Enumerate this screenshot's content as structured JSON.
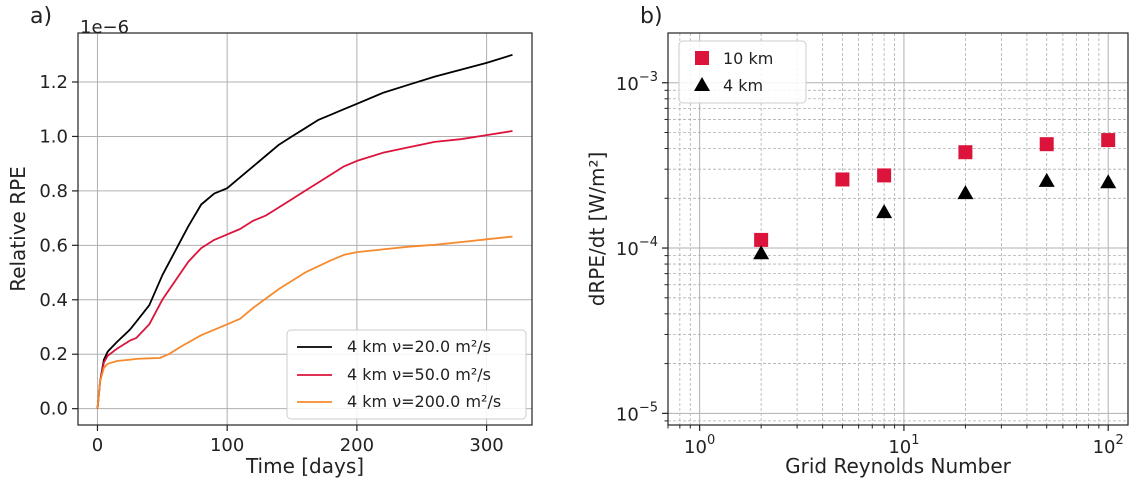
{
  "chart_data": [
    {
      "type": "line",
      "panel_label": "a)",
      "offset_label": "1e−6",
      "xlabel": "Time [days]",
      "ylabel": "Relative RPE",
      "xlim": [
        -15,
        335
      ],
      "ylim": [
        -0.06,
        1.38
      ],
      "y_scale_factor": 1e-06,
      "xticks": [
        0,
        100,
        200,
        300
      ],
      "xtick_labels": [
        "0",
        "100",
        "200",
        "300"
      ],
      "yticks": [
        0.0,
        0.2,
        0.4,
        0.6,
        0.8,
        1.0,
        1.2
      ],
      "ytick_labels": [
        "0.0",
        "0.2",
        "0.4",
        "0.6",
        "0.8",
        "1.0",
        "1.2"
      ],
      "grid": true,
      "legend_position": "lower-right",
      "series": [
        {
          "name": "4 km ν=20.0 m²/s",
          "color": "#000000",
          "x": [
            0,
            2,
            5,
            8,
            15,
            25,
            30,
            40,
            50,
            60,
            70,
            80,
            90,
            100,
            110,
            120,
            130,
            140,
            150,
            160,
            170,
            180,
            190,
            200,
            220,
            240,
            260,
            280,
            300,
            320
          ],
          "y": [
            0.0,
            0.1,
            0.18,
            0.21,
            0.245,
            0.29,
            0.32,
            0.38,
            0.49,
            0.58,
            0.67,
            0.75,
            0.79,
            0.81,
            0.85,
            0.89,
            0.93,
            0.97,
            1.0,
            1.03,
            1.06,
            1.08,
            1.1,
            1.12,
            1.16,
            1.19,
            1.22,
            1.245,
            1.27,
            1.3
          ]
        },
        {
          "name": "4 km ν=50.0 m²/s",
          "color": "#dc143c",
          "x": [
            0,
            2,
            5,
            8,
            15,
            25,
            30,
            40,
            50,
            60,
            70,
            80,
            90,
            100,
            110,
            120,
            130,
            140,
            150,
            160,
            170,
            180,
            190,
            200,
            220,
            240,
            260,
            280,
            300,
            320
          ],
          "y": [
            0.0,
            0.1,
            0.17,
            0.195,
            0.22,
            0.25,
            0.26,
            0.31,
            0.4,
            0.47,
            0.54,
            0.59,
            0.62,
            0.64,
            0.66,
            0.69,
            0.71,
            0.74,
            0.77,
            0.8,
            0.83,
            0.86,
            0.89,
            0.91,
            0.94,
            0.96,
            0.98,
            0.99,
            1.005,
            1.02
          ]
        },
        {
          "name": "4 km ν=200.0 m²/s",
          "color": "#f58b2e",
          "x": [
            0,
            2,
            5,
            8,
            15,
            25,
            30,
            40,
            48,
            55,
            65,
            80,
            100,
            110,
            120,
            140,
            160,
            180,
            190,
            200,
            220,
            240,
            260,
            280,
            300,
            320
          ],
          "y": [
            0.0,
            0.1,
            0.15,
            0.165,
            0.175,
            0.18,
            0.183,
            0.185,
            0.186,
            0.2,
            0.23,
            0.27,
            0.31,
            0.33,
            0.37,
            0.44,
            0.5,
            0.545,
            0.565,
            0.575,
            0.585,
            0.595,
            0.602,
            0.612,
            0.622,
            0.632
          ]
        }
      ]
    },
    {
      "type": "scatter",
      "panel_label": "b)",
      "xlabel": "Grid Reynolds Number",
      "ylabel": "dRPE/dt [W/m²]",
      "xscale": "log",
      "yscale": "log",
      "xlim": [
        0.7,
        125
      ],
      "ylim": [
        8.5e-06,
        0.002
      ],
      "xticks": [
        1,
        10,
        100
      ],
      "xtick_labels": [
        {
          "base": "10",
          "exp": "0"
        },
        {
          "base": "10",
          "exp": "1"
        },
        {
          "base": "10",
          "exp": "2"
        }
      ],
      "yticks": [
        1e-05,
        0.0001,
        0.001
      ],
      "ytick_labels": [
        {
          "base": "10",
          "exp": "−5"
        },
        {
          "base": "10",
          "exp": "−4"
        },
        {
          "base": "10",
          "exp": "−3"
        }
      ],
      "grid": true,
      "legend_position": "top-left",
      "series": [
        {
          "name": "10 km",
          "marker": "square",
          "color": "#dc143c",
          "x": [
            2,
            5,
            8,
            20,
            50,
            100
          ],
          "y": [
            0.000112,
            0.00026,
            0.000275,
            0.00038,
            0.000425,
            0.00045
          ]
        },
        {
          "name": "4 km",
          "marker": "triangle",
          "color": "#000000",
          "x": [
            2,
            8,
            20,
            50,
            100
          ],
          "y": [
            9.3e-05,
            0.000165,
            0.000215,
            0.000255,
            0.00025
          ]
        }
      ]
    }
  ]
}
